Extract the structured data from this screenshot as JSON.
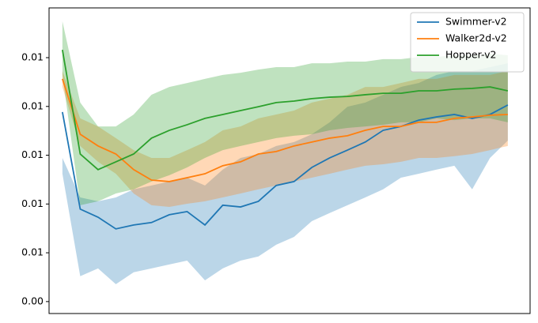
{
  "chart_data": {
    "type": "line",
    "x": [
      0,
      2,
      4,
      6,
      8,
      10,
      12,
      14,
      16,
      18,
      20,
      22,
      24,
      26,
      28,
      30,
      32,
      34,
      36,
      38,
      40,
      42,
      44,
      46,
      48,
      50
    ],
    "xlim": [
      -1.5,
      52.5
    ],
    "ylim": [
      0.00351,
      0.01604
    ],
    "yticks": [
      {
        "value": 0.004,
        "label": "0.00"
      },
      {
        "value": 0.006,
        "label": "0.01"
      },
      {
        "value": 0.008,
        "label": "0.01"
      },
      {
        "value": 0.01,
        "label": "0.01"
      },
      {
        "value": 0.012,
        "label": "0.01"
      },
      {
        "value": 0.014,
        "label": "0.01"
      }
    ],
    "legend": "upper right",
    "band_opacity": 0.3,
    "series": [
      {
        "name": "Swimmer-v2",
        "color": "#1f77b4",
        "values": [
          0.01177,
          0.00779,
          0.00746,
          0.00698,
          0.00714,
          0.00724,
          0.00756,
          0.00769,
          0.00714,
          0.00795,
          0.00788,
          0.00811,
          0.00876,
          0.00892,
          0.0095,
          0.00989,
          0.01021,
          0.01054,
          0.01102,
          0.01118,
          0.01144,
          0.01157,
          0.01167,
          0.01151,
          0.01167,
          0.01206
        ],
        "upper": [
          0.00989,
          0.00827,
          0.00811,
          0.00827,
          0.0086,
          0.00876,
          0.00892,
          0.00908,
          0.00876,
          0.00941,
          0.00989,
          0.01005,
          0.01038,
          0.01054,
          0.01086,
          0.01135,
          0.01199,
          0.01216,
          0.01248,
          0.0128,
          0.01296,
          0.01329,
          0.01345,
          0.01345,
          0.01361,
          0.01377
        ],
        "lower": [
          0.00924,
          0.00504,
          0.00536,
          0.00471,
          0.0052,
          0.00536,
          0.00552,
          0.00568,
          0.00487,
          0.00536,
          0.00568,
          0.00585,
          0.00633,
          0.00665,
          0.0073,
          0.00763,
          0.00795,
          0.00827,
          0.0086,
          0.00908,
          0.00924,
          0.00941,
          0.00957,
          0.0086,
          0.00989,
          0.0106
        ]
      },
      {
        "name": "Walker2d-v2",
        "color": "#ff7f0e",
        "values": [
          0.01313,
          0.01086,
          0.01038,
          0.01005,
          0.00941,
          0.00898,
          0.00892,
          0.00908,
          0.00924,
          0.00957,
          0.00973,
          0.01005,
          0.01015,
          0.01038,
          0.01054,
          0.0107,
          0.0108,
          0.01102,
          0.01118,
          0.01118,
          0.01135,
          0.01135,
          0.01151,
          0.01157,
          0.01164,
          0.01167
        ],
        "upper": [
          0.01345,
          0.01151,
          0.01118,
          0.0107,
          0.01021,
          0.00989,
          0.00989,
          0.01021,
          0.01054,
          0.01102,
          0.01118,
          0.01151,
          0.01167,
          0.01183,
          0.01216,
          0.01232,
          0.01248,
          0.0128,
          0.0128,
          0.01296,
          0.01313,
          0.01313,
          0.01329,
          0.01329,
          0.01329,
          0.01345
        ],
        "lower": [
          0.0128,
          0.01038,
          0.00973,
          0.00924,
          0.00843,
          0.00795,
          0.00788,
          0.00801,
          0.00811,
          0.00827,
          0.00843,
          0.0086,
          0.00876,
          0.00892,
          0.00908,
          0.00924,
          0.00941,
          0.00957,
          0.00963,
          0.00973,
          0.00989,
          0.00989,
          0.00996,
          0.01005,
          0.01021,
          0.01038
        ]
      },
      {
        "name": "Hopper-v2",
        "color": "#2ca02c",
        "values": [
          0.01432,
          0.01005,
          0.00941,
          0.00973,
          0.01005,
          0.0107,
          0.01102,
          0.01125,
          0.01151,
          0.01167,
          0.01183,
          0.01199,
          0.01216,
          0.01222,
          0.01232,
          0.01238,
          0.01241,
          0.01248,
          0.01254,
          0.01254,
          0.01264,
          0.01264,
          0.01271,
          0.01274,
          0.0128,
          0.01264
        ],
        "upper": [
          0.01549,
          0.01216,
          0.01118,
          0.01118,
          0.01167,
          0.01248,
          0.0128,
          0.01296,
          0.01313,
          0.01329,
          0.01338,
          0.01351,
          0.01361,
          0.01361,
          0.01377,
          0.01377,
          0.01384,
          0.01384,
          0.01394,
          0.01394,
          0.01403,
          0.01403,
          0.0141,
          0.0141,
          0.01416,
          0.0141
        ],
        "lower": [
          0.01329,
          0.00795,
          0.00811,
          0.00843,
          0.0086,
          0.00892,
          0.00918,
          0.0095,
          0.00989,
          0.01021,
          0.01038,
          0.01054,
          0.0107,
          0.0108,
          0.01086,
          0.01102,
          0.01112,
          0.01118,
          0.01125,
          0.01135,
          0.01135,
          0.01151,
          0.01144,
          0.01151,
          0.01151,
          0.01135
        ]
      }
    ]
  }
}
